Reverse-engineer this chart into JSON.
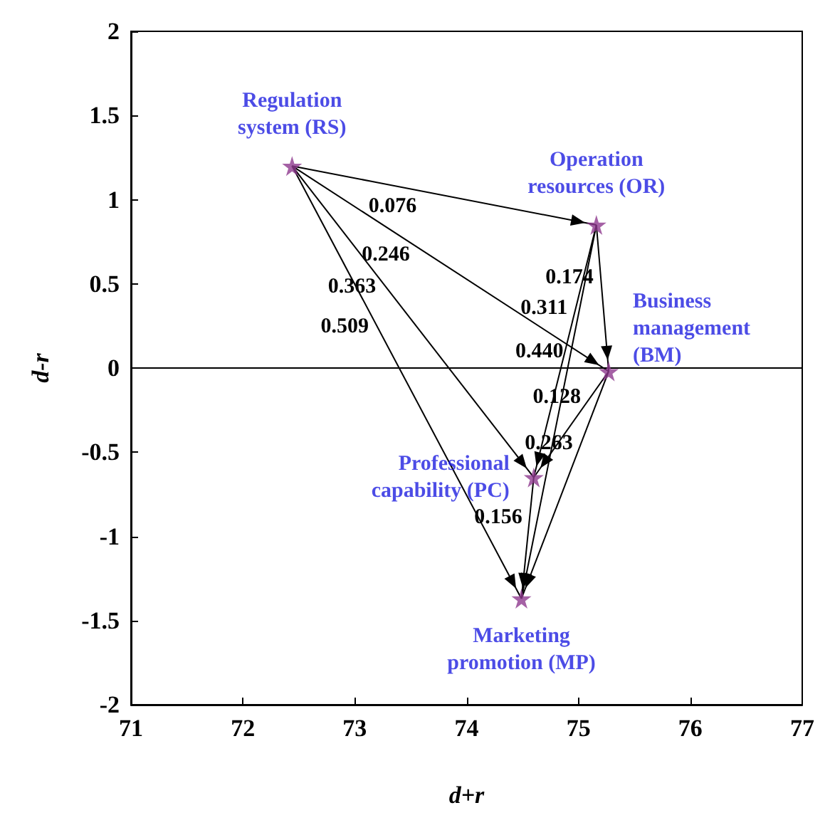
{
  "chart_data": {
    "type": "scatter",
    "xlabel": "d+r",
    "ylabel": "d-r",
    "xlim": [
      71,
      77
    ],
    "xticks": [
      71,
      72,
      73,
      74,
      75,
      76,
      77
    ],
    "ylim": [
      -2,
      2
    ],
    "yticks": [
      -2,
      -1.5,
      -1,
      -0.5,
      0,
      0.5,
      1,
      1.5,
      2
    ],
    "marker": "star",
    "series": [
      {
        "color": "#8e3a8e",
        "x": [
          72.44,
          75.16,
          75.27,
          74.6,
          74.49
        ],
        "values": [
          1.2,
          0.85,
          -0.02,
          -0.65,
          -1.37
        ],
        "value_labels": [
          "Regulation\nsystem (RS)",
          "Operation\nresources (OR)",
          "Business\nmanagement\n(BM)",
          "Professional\ncapability (PC)",
          "Marketing\npromotion (MP)"
        ]
      },
      {
        "type": "line",
        "color": "#000000",
        "marker": "none",
        "x": [
          72.44,
          75.16
        ],
        "values": [
          1.2,
          0.85
        ]
      },
      {
        "type": "line",
        "color": "#000000",
        "marker": "none",
        "x": [
          72.44,
          75.27
        ],
        "values": [
          1.2,
          -0.02
        ]
      },
      {
        "type": "line",
        "color": "#000000",
        "marker": "none",
        "x": [
          72.44,
          74.6
        ],
        "values": [
          1.2,
          -0.65
        ]
      },
      {
        "type": "line",
        "color": "#000000",
        "marker": "none",
        "x": [
          72.44,
          74.49
        ],
        "values": [
          1.2,
          -1.37
        ]
      },
      {
        "type": "line",
        "color": "#000000",
        "marker": "none",
        "x": [
          75.16,
          75.27
        ],
        "values": [
          0.85,
          -0.02
        ]
      },
      {
        "type": "line",
        "color": "#000000",
        "marker": "none",
        "x": [
          75.16,
          74.6
        ],
        "values": [
          0.85,
          -0.65
        ]
      },
      {
        "type": "line",
        "color": "#000000",
        "marker": "none",
        "x": [
          75.16,
          74.49
        ],
        "values": [
          0.85,
          -1.37
        ]
      },
      {
        "type": "line",
        "color": "#000000",
        "marker": "none",
        "x": [
          75.27,
          74.6
        ],
        "values": [
          -0.02,
          -0.65
        ]
      },
      {
        "type": "line",
        "color": "#000000",
        "marker": "none",
        "x": [
          75.27,
          74.49
        ],
        "values": [
          -0.02,
          -1.37
        ]
      },
      {
        "type": "line",
        "color": "#000000",
        "marker": "none",
        "x": [
          74.6,
          74.49
        ],
        "values": [
          -0.65,
          -1.37
        ]
      }
    ],
    "ref_lines": [
      {
        "axis": "y",
        "value": 0,
        "color": "#000000"
      }
    ],
    "annotations": [
      "0.076",
      "0.246",
      "0.363",
      "0.509",
      "0.174",
      "0.311",
      "0.440",
      "0.128",
      "0.263",
      "0.156"
    ]
  }
}
